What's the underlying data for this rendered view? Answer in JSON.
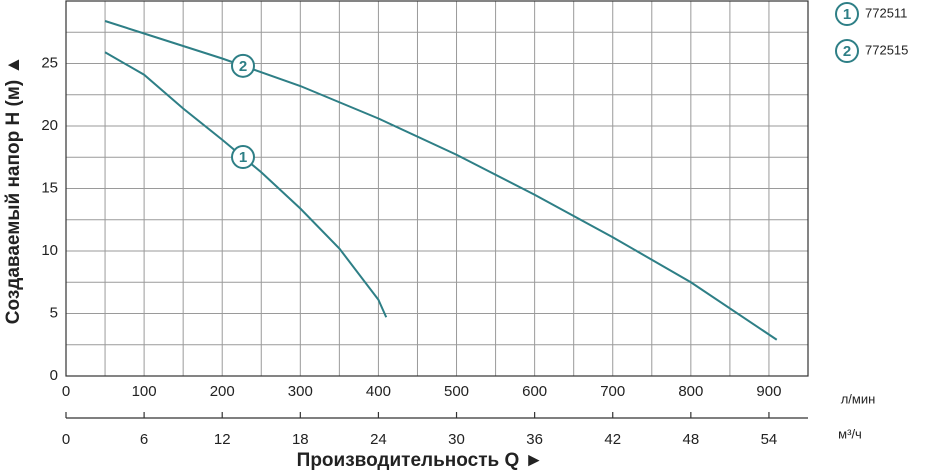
{
  "chart_data": {
    "type": "line",
    "ylabel": "Создаваемый напор H (м) ▲",
    "xlabel": "Производительность Q ►",
    "xunit": "л/мин",
    "x2unit": "м³/ч",
    "xlim": [
      0,
      950
    ],
    "xticks": [
      0,
      100,
      200,
      300,
      400,
      500,
      600,
      700,
      800,
      900
    ],
    "x2lim": [
      0,
      57
    ],
    "x2ticks": [
      0,
      6,
      12,
      18,
      24,
      30,
      36,
      42,
      48,
      54
    ],
    "ylim": [
      0,
      30
    ],
    "yticks": [
      0,
      5,
      10,
      15,
      20,
      25
    ],
    "grid": {
      "x": 50,
      "y": 2.5
    },
    "series": [
      {
        "name": "772511",
        "marker_label": "1",
        "color": "#2e7f86",
        "x": [
          50,
          100,
          150,
          200,
          250,
          300,
          350,
          400,
          410
        ],
        "values": [
          25.9,
          24.1,
          21.4,
          18.9,
          16.3,
          13.4,
          10.2,
          6.1,
          4.7
        ]
      },
      {
        "name": "772515",
        "marker_label": "2",
        "color": "#2e7f86",
        "x": [
          50,
          100,
          200,
          300,
          400,
          500,
          600,
          700,
          800,
          910
        ],
        "values": [
          28.4,
          27.4,
          25.4,
          23.2,
          20.6,
          17.7,
          14.5,
          11.1,
          7.5,
          2.9
        ]
      }
    ]
  }
}
